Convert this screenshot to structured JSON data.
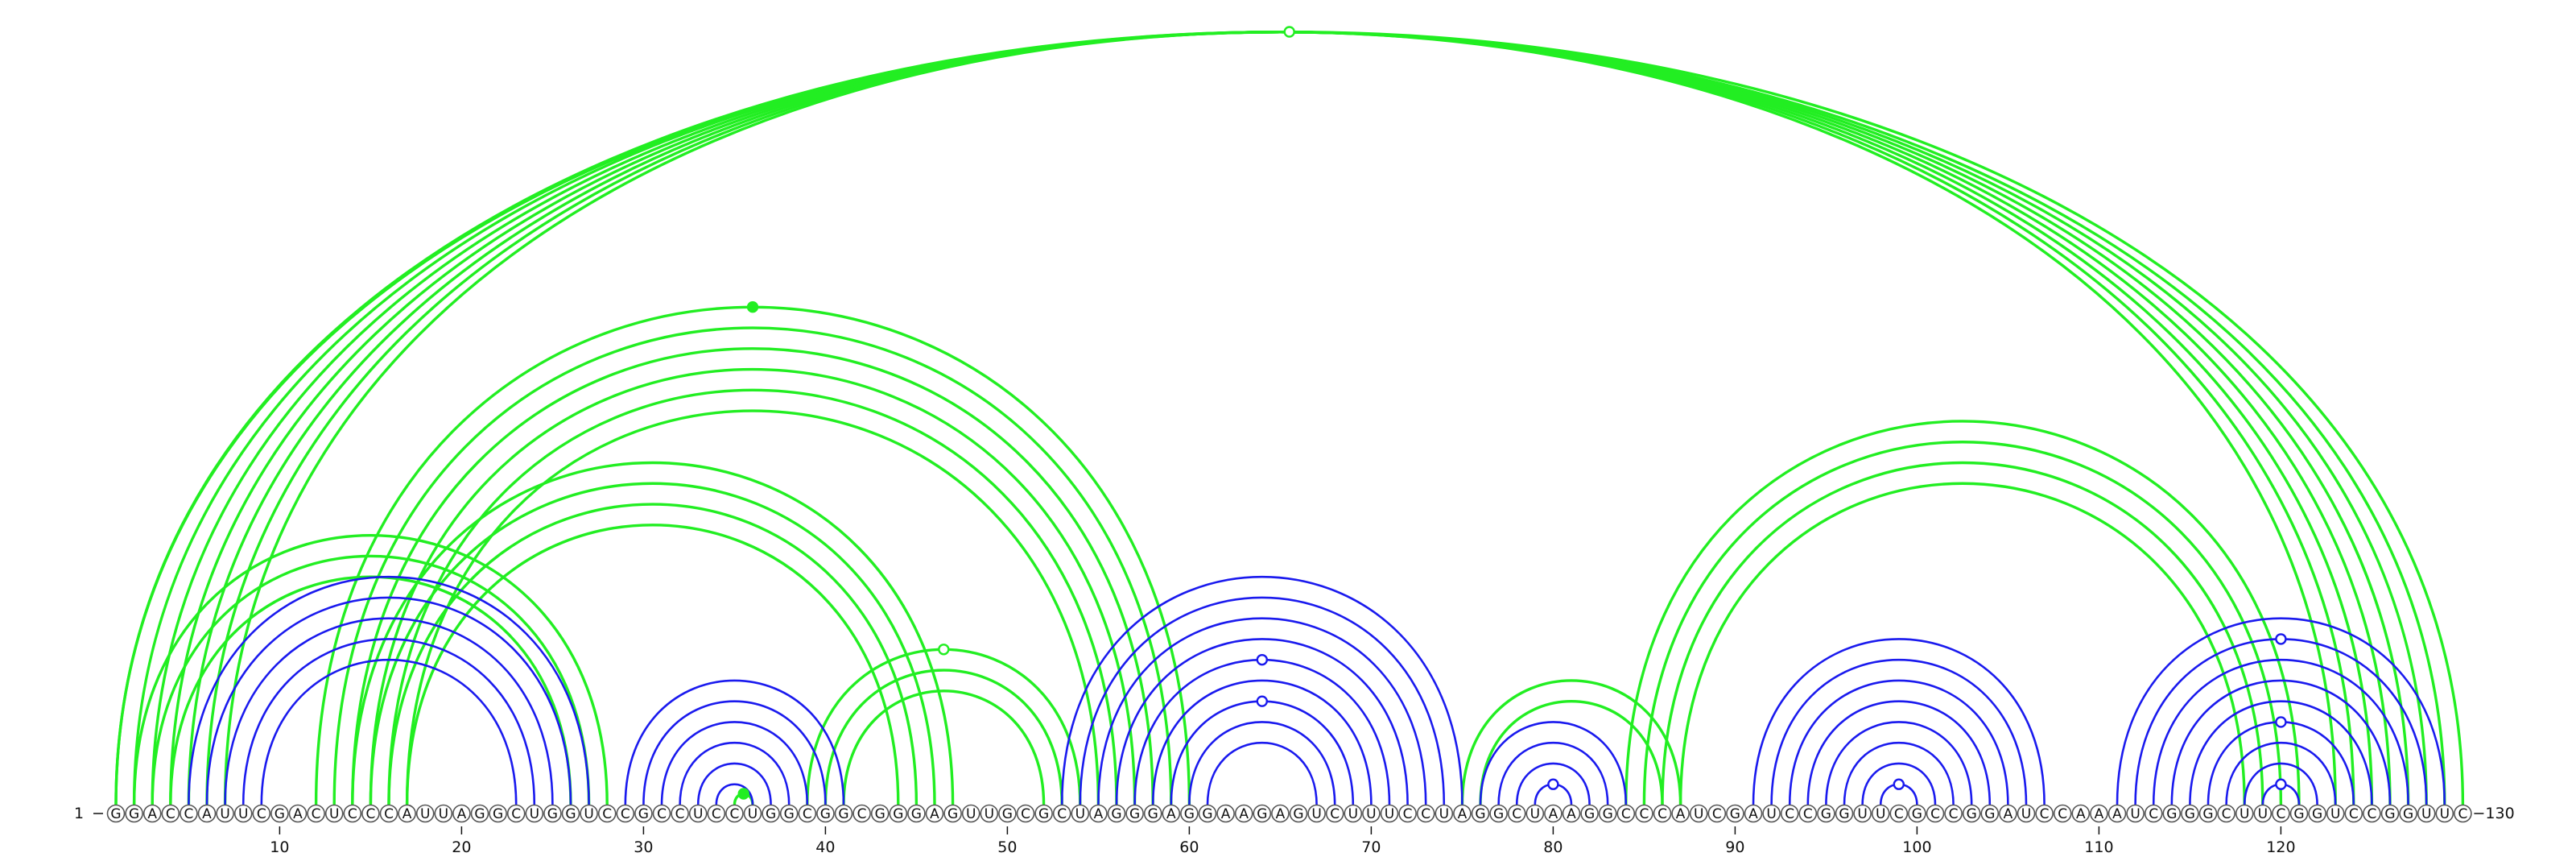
{
  "sequence": "GGACCAUUCGACUCCCAUUAGGCUGGUCCGCCUCCUGGCGGCGGGAGUUGCGCUAGGGAGGAAGAGUCUUUCCUAGGCUAAGGCCCAUCGAUCCGGUUCGCCGGAUCCAAAUCGGGCUUCGGUCCGGUUC",
  "start_label": "1",
  "end_label": "130",
  "ticks": [
    {
      "pos": 10,
      "label": "10"
    },
    {
      "pos": 20,
      "label": "20"
    },
    {
      "pos": 30,
      "label": "30"
    },
    {
      "pos": 40,
      "label": "40"
    },
    {
      "pos": 50,
      "label": "50"
    },
    {
      "pos": 60,
      "label": "60"
    },
    {
      "pos": 70,
      "label": "70"
    },
    {
      "pos": 80,
      "label": "80"
    },
    {
      "pos": 90,
      "label": "90"
    },
    {
      "pos": 100,
      "label": "100"
    },
    {
      "pos": 110,
      "label": "110"
    },
    {
      "pos": 120,
      "label": "120"
    }
  ],
  "colors": {
    "green": "#22ee22",
    "blue": "#1a1aee",
    "circle_stroke": "#555555"
  },
  "chart_data": {
    "type": "arc_diagram",
    "x_range": [
      1,
      130
    ],
    "green_arcs": [
      {
        "i": 1,
        "j": 130,
        "marker": "open"
      },
      {
        "i": 1,
        "j": 129
      },
      {
        "i": 2,
        "j": 128
      },
      {
        "i": 3,
        "j": 127
      },
      {
        "i": 4,
        "j": 126
      },
      {
        "i": 5,
        "j": 125
      },
      {
        "i": 6,
        "j": 124
      },
      {
        "i": 7,
        "j": 123
      },
      {
        "i": 2,
        "j": 28
      },
      {
        "i": 3,
        "j": 27
      },
      {
        "i": 4,
        "j": 26
      },
      {
        "i": 12,
        "j": 60,
        "marker": "filled"
      },
      {
        "i": 13,
        "j": 59
      },
      {
        "i": 14,
        "j": 58
      },
      {
        "i": 15,
        "j": 57
      },
      {
        "i": 16,
        "j": 56
      },
      {
        "i": 17,
        "j": 55
      },
      {
        "i": 14,
        "j": 47
      },
      {
        "i": 15,
        "j": 46
      },
      {
        "i": 16,
        "j": 45
      },
      {
        "i": 17,
        "j": 44
      },
      {
        "i": 39,
        "j": 54,
        "marker": "open"
      },
      {
        "i": 40,
        "j": 53
      },
      {
        "i": 41,
        "j": 52
      },
      {
        "i": 35,
        "j": 36,
        "marker": "filled"
      },
      {
        "i": 75,
        "j": 87
      },
      {
        "i": 76,
        "j": 86
      },
      {
        "i": 84,
        "j": 121
      },
      {
        "i": 85,
        "j": 120
      },
      {
        "i": 86,
        "j": 119
      },
      {
        "i": 87,
        "j": 118
      }
    ],
    "blue_arcs": [
      {
        "i": 5,
        "j": 27
      },
      {
        "i": 6,
        "j": 26
      },
      {
        "i": 7,
        "j": 25
      },
      {
        "i": 8,
        "j": 24
      },
      {
        "i": 9,
        "j": 23
      },
      {
        "i": 29,
        "j": 41
      },
      {
        "i": 30,
        "j": 40
      },
      {
        "i": 31,
        "j": 39
      },
      {
        "i": 32,
        "j": 38
      },
      {
        "i": 33,
        "j": 37
      },
      {
        "i": 34,
        "j": 36
      },
      {
        "i": 53,
        "j": 75
      },
      {
        "i": 54,
        "j": 74
      },
      {
        "i": 55,
        "j": 73
      },
      {
        "i": 56,
        "j": 72
      },
      {
        "i": 57,
        "j": 71,
        "marker": "open"
      },
      {
        "i": 58,
        "j": 70
      },
      {
        "i": 59,
        "j": 69,
        "marker": "open"
      },
      {
        "i": 60,
        "j": 68
      },
      {
        "i": 61,
        "j": 67
      },
      {
        "i": 76,
        "j": 84
      },
      {
        "i": 77,
        "j": 83
      },
      {
        "i": 78,
        "j": 82
      },
      {
        "i": 79,
        "j": 81,
        "marker": "open"
      },
      {
        "i": 91,
        "j": 107
      },
      {
        "i": 92,
        "j": 106
      },
      {
        "i": 93,
        "j": 105
      },
      {
        "i": 94,
        "j": 104
      },
      {
        "i": 95,
        "j": 103
      },
      {
        "i": 96,
        "j": 102
      },
      {
        "i": 97,
        "j": 101
      },
      {
        "i": 98,
        "j": 100,
        "marker": "open"
      },
      {
        "i": 111,
        "j": 129
      },
      {
        "i": 112,
        "j": 128,
        "marker": "open"
      },
      {
        "i": 113,
        "j": 127
      },
      {
        "i": 114,
        "j": 126
      },
      {
        "i": 115,
        "j": 125
      },
      {
        "i": 116,
        "j": 124,
        "marker": "open"
      },
      {
        "i": 117,
        "j": 123
      },
      {
        "i": 118,
        "j": 122
      },
      {
        "i": 119,
        "j": 121,
        "marker": "open"
      }
    ]
  }
}
